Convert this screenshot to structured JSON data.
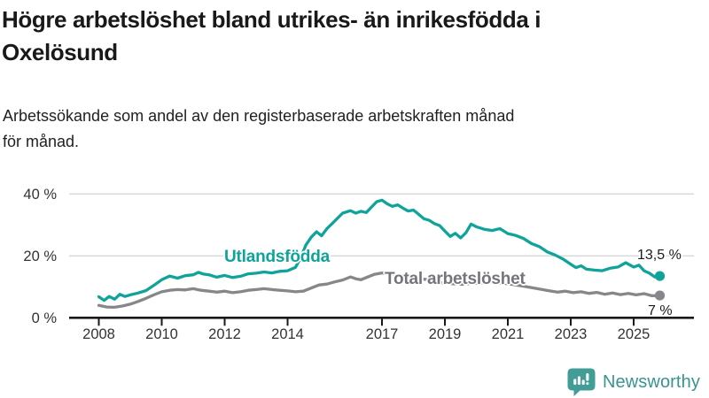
{
  "header": {
    "title_line1": "Högre arbetslöshet bland utrikes- än inrikesfödda i",
    "title_line2": "Oxelösund",
    "subtitle_line1": "Arbetssökande som andel av den registerbaserade arbetskraften månad",
    "subtitle_line2": "för månad."
  },
  "footer": {
    "brand": "Newsworthy",
    "logo_icon": "bar-chart-speech-bubble-icon",
    "brand_color": "#3a948e",
    "logo_color": "#429d96"
  },
  "chart_data": {
    "type": "line",
    "title": "Högre arbetslöshet bland utrikes- än inrikesfödda i Oxelösund",
    "subtitle": "Arbetssökande som andel av den registerbaserade arbetskraften månad för månad.",
    "unit": "%",
    "grid": "horizontal-only",
    "legend_position": "inline-labels",
    "x_range": [
      2008,
      2026
    ],
    "y_range": [
      0,
      44
    ],
    "x_ticks": [
      2008,
      2010,
      2012,
      2014,
      2017,
      2019,
      2021,
      2023,
      2025
    ],
    "x_tick_labels": [
      "2008",
      "2010",
      "2012",
      "2014",
      "2017",
      "2019",
      "2021",
      "2023",
      "2025"
    ],
    "y_ticks": [
      0,
      20,
      40
    ],
    "y_tick_labels": [
      "0 %",
      "20 %",
      "40 %"
    ],
    "colors": {
      "utlandsfodda": "#0fa39a",
      "total": "#87878b",
      "gridline": "#d8d8d8",
      "axis": "#1a1a1a",
      "tick_text": "#333333"
    },
    "series": [
      {
        "name": "Utlandsfödda",
        "id_slug": "utlandsfodda",
        "color_key": "utlandsfodda",
        "end_label": "13,5 %",
        "end_value": 13.5,
        "points": [
          [
            2008.0,
            6.8
          ],
          [
            2008.17,
            5.6
          ],
          [
            2008.33,
            6.9
          ],
          [
            2008.5,
            6.0
          ],
          [
            2008.67,
            7.6
          ],
          [
            2008.83,
            6.9
          ],
          [
            2009.0,
            7.4
          ],
          [
            2009.25,
            8.0
          ],
          [
            2009.5,
            8.8
          ],
          [
            2009.75,
            10.5
          ],
          [
            2010.0,
            12.3
          ],
          [
            2010.25,
            13.5
          ],
          [
            2010.5,
            12.8
          ],
          [
            2010.75,
            13.6
          ],
          [
            2011.0,
            13.9
          ],
          [
            2011.17,
            14.7
          ],
          [
            2011.33,
            14.1
          ],
          [
            2011.5,
            13.9
          ],
          [
            2011.75,
            13.1
          ],
          [
            2012.0,
            13.7
          ],
          [
            2012.25,
            13.0
          ],
          [
            2012.5,
            13.4
          ],
          [
            2012.75,
            14.2
          ],
          [
            2013.0,
            14.4
          ],
          [
            2013.25,
            14.8
          ],
          [
            2013.5,
            14.5
          ],
          [
            2013.75,
            15.0
          ],
          [
            2014.0,
            15.2
          ],
          [
            2014.25,
            16.3
          ],
          [
            2014.42,
            19.5
          ],
          [
            2014.58,
            23.5
          ],
          [
            2014.75,
            26.0
          ],
          [
            2014.92,
            27.8
          ],
          [
            2015.08,
            26.5
          ],
          [
            2015.25,
            28.8
          ],
          [
            2015.5,
            31.3
          ],
          [
            2015.75,
            33.8
          ],
          [
            2016.0,
            34.6
          ],
          [
            2016.17,
            33.8
          ],
          [
            2016.33,
            34.4
          ],
          [
            2016.5,
            34.0
          ],
          [
            2016.67,
            35.8
          ],
          [
            2016.83,
            37.5
          ],
          [
            2017.0,
            38.0
          ],
          [
            2017.17,
            36.8
          ],
          [
            2017.33,
            36.0
          ],
          [
            2017.5,
            36.5
          ],
          [
            2017.67,
            35.4
          ],
          [
            2017.83,
            34.5
          ],
          [
            2018.0,
            34.8
          ],
          [
            2018.17,
            33.4
          ],
          [
            2018.33,
            32.0
          ],
          [
            2018.5,
            31.5
          ],
          [
            2018.67,
            30.4
          ],
          [
            2018.83,
            29.8
          ],
          [
            2019.0,
            28.0
          ],
          [
            2019.17,
            26.3
          ],
          [
            2019.33,
            27.3
          ],
          [
            2019.5,
            25.8
          ],
          [
            2019.67,
            27.5
          ],
          [
            2019.83,
            30.3
          ],
          [
            2020.0,
            29.4
          ],
          [
            2020.25,
            28.6
          ],
          [
            2020.5,
            28.2
          ],
          [
            2020.75,
            28.8
          ],
          [
            2021.0,
            27.2
          ],
          [
            2021.25,
            26.6
          ],
          [
            2021.5,
            25.6
          ],
          [
            2021.75,
            24.0
          ],
          [
            2022.0,
            23.0
          ],
          [
            2022.25,
            21.3
          ],
          [
            2022.5,
            20.3
          ],
          [
            2022.75,
            19.0
          ],
          [
            2023.0,
            17.3
          ],
          [
            2023.17,
            16.2
          ],
          [
            2023.33,
            16.8
          ],
          [
            2023.5,
            15.7
          ],
          [
            2023.75,
            15.4
          ],
          [
            2024.0,
            15.2
          ],
          [
            2024.25,
            16.0
          ],
          [
            2024.5,
            16.4
          ],
          [
            2024.75,
            17.8
          ],
          [
            2025.0,
            16.4
          ],
          [
            2025.17,
            17.0
          ],
          [
            2025.33,
            15.2
          ],
          [
            2025.5,
            14.4
          ],
          [
            2025.67,
            13.2
          ],
          [
            2025.83,
            13.5
          ]
        ]
      },
      {
        "name": "Total arbetslöshet",
        "id_slug": "total-arbetsloshet",
        "color_key": "total",
        "end_label": "7 %",
        "end_value": 7.2,
        "points": [
          [
            2008.0,
            4.0
          ],
          [
            2008.25,
            3.5
          ],
          [
            2008.5,
            3.4
          ],
          [
            2008.75,
            3.8
          ],
          [
            2009.0,
            4.4
          ],
          [
            2009.25,
            5.3
          ],
          [
            2009.5,
            6.3
          ],
          [
            2009.75,
            7.4
          ],
          [
            2010.0,
            8.4
          ],
          [
            2010.25,
            8.9
          ],
          [
            2010.5,
            9.1
          ],
          [
            2010.75,
            9.0
          ],
          [
            2011.0,
            9.4
          ],
          [
            2011.25,
            8.9
          ],
          [
            2011.5,
            8.6
          ],
          [
            2011.75,
            8.3
          ],
          [
            2012.0,
            8.6
          ],
          [
            2012.25,
            8.1
          ],
          [
            2012.5,
            8.4
          ],
          [
            2012.75,
            8.9
          ],
          [
            2013.0,
            9.1
          ],
          [
            2013.25,
            9.4
          ],
          [
            2013.5,
            9.1
          ],
          [
            2013.75,
            8.9
          ],
          [
            2014.0,
            8.7
          ],
          [
            2014.25,
            8.4
          ],
          [
            2014.5,
            8.6
          ],
          [
            2014.75,
            9.6
          ],
          [
            2015.0,
            10.6
          ],
          [
            2015.25,
            10.9
          ],
          [
            2015.5,
            11.6
          ],
          [
            2015.75,
            12.2
          ],
          [
            2016.0,
            13.2
          ],
          [
            2016.17,
            12.6
          ],
          [
            2016.33,
            12.3
          ],
          [
            2016.5,
            13.0
          ],
          [
            2016.75,
            14.0
          ],
          [
            2017.0,
            14.5
          ],
          [
            2017.5,
            13.8
          ],
          [
            2018.0,
            13.0
          ],
          [
            2018.5,
            12.2
          ],
          [
            2019.0,
            11.2
          ],
          [
            2019.5,
            10.8
          ],
          [
            2020.0,
            11.2
          ],
          [
            2020.5,
            11.6
          ],
          [
            2021.0,
            11.0
          ],
          [
            2021.5,
            10.2
          ],
          [
            2022.0,
            9.3
          ],
          [
            2022.33,
            8.7
          ],
          [
            2022.58,
            8.3
          ],
          [
            2022.83,
            8.6
          ],
          [
            2023.08,
            8.1
          ],
          [
            2023.33,
            8.4
          ],
          [
            2023.58,
            7.9
          ],
          [
            2023.83,
            8.2
          ],
          [
            2024.08,
            7.6
          ],
          [
            2024.33,
            8.0
          ],
          [
            2024.58,
            7.5
          ],
          [
            2024.83,
            7.9
          ],
          [
            2025.08,
            7.4
          ],
          [
            2025.33,
            7.8
          ],
          [
            2025.58,
            7.1
          ],
          [
            2025.83,
            7.2
          ]
        ]
      }
    ]
  }
}
